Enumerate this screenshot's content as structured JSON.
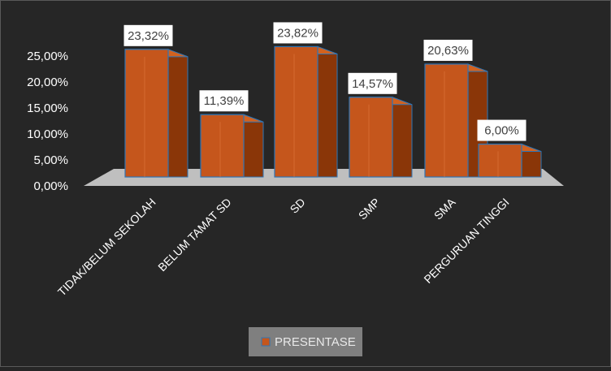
{
  "colors": {
    "background": "#262626",
    "bar_front": "#c5561c",
    "bar_side": "#8a3608",
    "bar_top": "#d2621f",
    "bar_edge": "#2e75b6",
    "floor": "#bfbfbf",
    "label_bg": "#ffffff",
    "text": "#ffffff",
    "legend_bg": "#7f7f7f",
    "legend_text": "#e8e8e8"
  },
  "chart_data": {
    "type": "bar",
    "style": "3d-clustered-column",
    "categories": [
      "TIDAK/BELUM SEKOLAH",
      "BELUM TAMAT SD",
      "SD",
      "SMP",
      "SMA",
      "PERGURUAN TINGGI"
    ],
    "series": [
      {
        "name": "PRESENTASE",
        "values": [
          23.32,
          11.39,
          23.82,
          14.57,
          20.63,
          6.0
        ],
        "labels": [
          "23,32%",
          "11,39%",
          "23,82%",
          "14,57%",
          "20,63%",
          "6,00%"
        ]
      }
    ],
    "yticks": [
      "0,00%",
      "5,00%",
      "10,00%",
      "15,00%",
      "20,00%",
      "25,00%"
    ],
    "ylim": [
      0,
      25
    ],
    "grid": false,
    "legend": "bottom",
    "title": "",
    "xlabel": "",
    "ylabel": ""
  }
}
